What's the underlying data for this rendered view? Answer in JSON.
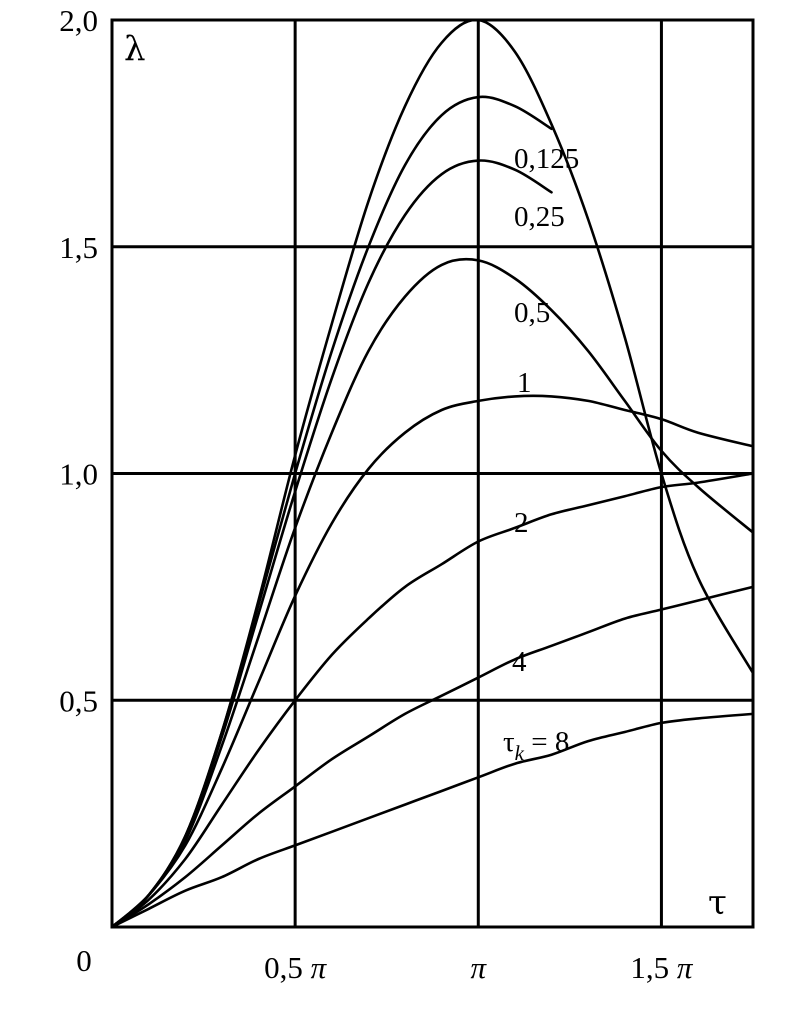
{
  "chart_data": {
    "type": "line",
    "title": "",
    "ylabel": "λ",
    "xlabel": "τ",
    "xlim": [
      0,
      1.75
    ],
    "ylim": [
      0,
      2.0
    ],
    "x_unit": "π",
    "grid": true,
    "x_ticks": [
      {
        "value": 0.5,
        "label": "0,5",
        "suffix": "π"
      },
      {
        "value": 1.0,
        "label": "",
        "suffix": "π"
      },
      {
        "value": 1.5,
        "label": "1,5",
        "suffix": "π"
      }
    ],
    "origin_label": "0",
    "y_ticks": [
      {
        "value": 0.5,
        "label": "0,5"
      },
      {
        "value": 1.0,
        "label": "1,0"
      },
      {
        "value": 1.5,
        "label": "1,5"
      },
      {
        "value": 2.0,
        "label": "2,0"
      }
    ],
    "series": [
      {
        "name": "",
        "label": "",
        "points": [
          [
            0,
            0
          ],
          [
            0.1,
            0.07
          ],
          [
            0.2,
            0.2
          ],
          [
            0.3,
            0.43
          ],
          [
            0.4,
            0.72
          ],
          [
            0.5,
            1.04
          ],
          [
            0.6,
            1.33
          ],
          [
            0.7,
            1.6
          ],
          [
            0.8,
            1.81
          ],
          [
            0.9,
            1.95
          ],
          [
            1.0,
            2.0
          ],
          [
            1.1,
            1.93
          ],
          [
            1.2,
            1.77
          ],
          [
            1.3,
            1.56
          ],
          [
            1.4,
            1.3
          ],
          [
            1.5,
            1.0
          ],
          [
            1.6,
            0.77
          ],
          [
            1.75,
            0.56
          ]
        ]
      },
      {
        "name": "0,125",
        "label": "0,125",
        "points": [
          [
            0,
            0
          ],
          [
            0.1,
            0.07
          ],
          [
            0.2,
            0.2
          ],
          [
            0.3,
            0.43
          ],
          [
            0.4,
            0.71
          ],
          [
            0.5,
            1.0
          ],
          [
            0.6,
            1.27
          ],
          [
            0.7,
            1.5
          ],
          [
            0.8,
            1.68
          ],
          [
            0.9,
            1.79
          ],
          [
            1.0,
            1.83
          ],
          [
            1.1,
            1.81
          ],
          [
            1.2,
            1.76
          ]
        ]
      },
      {
        "name": "0,25",
        "label": "0,25",
        "points": [
          [
            0,
            0
          ],
          [
            0.1,
            0.07
          ],
          [
            0.2,
            0.2
          ],
          [
            0.3,
            0.42
          ],
          [
            0.4,
            0.69
          ],
          [
            0.5,
            0.96
          ],
          [
            0.6,
            1.21
          ],
          [
            0.7,
            1.42
          ],
          [
            0.8,
            1.57
          ],
          [
            0.9,
            1.66
          ],
          [
            1.0,
            1.69
          ],
          [
            1.1,
            1.67
          ],
          [
            1.2,
            1.62
          ]
        ]
      },
      {
        "name": "0,5",
        "label": "0,5",
        "points": [
          [
            0,
            0
          ],
          [
            0.1,
            0.07
          ],
          [
            0.2,
            0.19
          ],
          [
            0.3,
            0.4
          ],
          [
            0.4,
            0.64
          ],
          [
            0.5,
            0.88
          ],
          [
            0.6,
            1.09
          ],
          [
            0.7,
            1.27
          ],
          [
            0.8,
            1.39
          ],
          [
            0.9,
            1.46
          ],
          [
            1.0,
            1.47
          ],
          [
            1.1,
            1.43
          ],
          [
            1.2,
            1.36
          ],
          [
            1.3,
            1.27
          ],
          [
            1.4,
            1.16
          ],
          [
            1.5,
            1.05
          ],
          [
            1.6,
            0.97
          ],
          [
            1.75,
            0.87
          ]
        ]
      },
      {
        "name": "1",
        "label": "1",
        "points": [
          [
            0,
            0
          ],
          [
            0.1,
            0.07
          ],
          [
            0.2,
            0.18
          ],
          [
            0.3,
            0.35
          ],
          [
            0.4,
            0.54
          ],
          [
            0.5,
            0.73
          ],
          [
            0.6,
            0.89
          ],
          [
            0.7,
            1.01
          ],
          [
            0.8,
            1.09
          ],
          [
            0.9,
            1.14
          ],
          [
            1.0,
            1.16
          ],
          [
            1.1,
            1.17
          ],
          [
            1.2,
            1.17
          ],
          [
            1.3,
            1.16
          ],
          [
            1.4,
            1.14
          ],
          [
            1.5,
            1.12
          ],
          [
            1.6,
            1.09
          ],
          [
            1.75,
            1.06
          ]
        ]
      },
      {
        "name": "2",
        "label": "2",
        "points": [
          [
            0,
            0
          ],
          [
            0.1,
            0.06
          ],
          [
            0.2,
            0.15
          ],
          [
            0.3,
            0.27
          ],
          [
            0.4,
            0.39
          ],
          [
            0.5,
            0.5
          ],
          [
            0.6,
            0.6
          ],
          [
            0.7,
            0.68
          ],
          [
            0.8,
            0.75
          ],
          [
            0.9,
            0.8
          ],
          [
            1.0,
            0.85
          ],
          [
            1.1,
            0.88
          ],
          [
            1.2,
            0.91
          ],
          [
            1.3,
            0.93
          ],
          [
            1.4,
            0.95
          ],
          [
            1.5,
            0.97
          ],
          [
            1.6,
            0.98
          ],
          [
            1.75,
            1.0
          ]
        ]
      },
      {
        "name": "4",
        "label": "4",
        "points": [
          [
            0,
            0
          ],
          [
            0.1,
            0.05
          ],
          [
            0.2,
            0.11
          ],
          [
            0.3,
            0.18
          ],
          [
            0.4,
            0.25
          ],
          [
            0.5,
            0.31
          ],
          [
            0.6,
            0.37
          ],
          [
            0.7,
            0.42
          ],
          [
            0.8,
            0.47
          ],
          [
            0.9,
            0.51
          ],
          [
            1.0,
            0.55
          ],
          [
            1.1,
            0.59
          ],
          [
            1.2,
            0.62
          ],
          [
            1.3,
            0.65
          ],
          [
            1.4,
            0.68
          ],
          [
            1.5,
            0.7
          ],
          [
            1.6,
            0.72
          ],
          [
            1.75,
            0.75
          ]
        ]
      },
      {
        "name": "τ_k = 8",
        "label": "τ",
        "label_sub": "k",
        "label_rest": " = 8",
        "points": [
          [
            0,
            0
          ],
          [
            0.1,
            0.04
          ],
          [
            0.2,
            0.08
          ],
          [
            0.3,
            0.11
          ],
          [
            0.4,
            0.15
          ],
          [
            0.5,
            0.18
          ],
          [
            0.6,
            0.21
          ],
          [
            0.7,
            0.24
          ],
          [
            0.8,
            0.27
          ],
          [
            0.9,
            0.3
          ],
          [
            1.0,
            0.33
          ],
          [
            1.1,
            0.36
          ],
          [
            1.2,
            0.38
          ],
          [
            1.3,
            0.41
          ],
          [
            1.4,
            0.43
          ],
          [
            1.5,
            0.45
          ],
          [
            1.6,
            0.46
          ],
          [
            1.75,
            0.47
          ]
        ]
      }
    ]
  }
}
